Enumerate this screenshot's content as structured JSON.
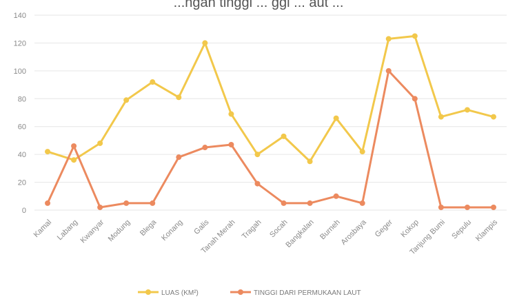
{
  "chart_data": {
    "type": "line",
    "title": "",
    "title_fragment": "...ngan tinggi ... ggi ... aut ...",
    "xlabel": "",
    "ylabel": "",
    "ylim": [
      0,
      140
    ],
    "yticks": [
      0,
      20,
      40,
      60,
      80,
      100,
      120,
      140
    ],
    "grid": true,
    "legend_position": "bottom",
    "categories": [
      "Kamal",
      "Labang",
      "Kwanyar",
      "Modung",
      "Blega",
      "Konang",
      "Galis",
      "Tanah Merah",
      "Tragah",
      "Socah",
      "Bangkalan",
      "Burneh",
      "Arosbaya",
      "Geger",
      "Kokop",
      "Tanjung Bumi",
      "Sepulu",
      "Klampis"
    ],
    "series": [
      {
        "name": "LUAS (KM²)",
        "color": "#f2c84b",
        "values": [
          42,
          36,
          48,
          79,
          92,
          81,
          120,
          69,
          40,
          53,
          35,
          66,
          42,
          123,
          125,
          67,
          72,
          67
        ]
      },
      {
        "name": "TINGGI DARI PERMUKAAN LAUT",
        "color": "#ec8a5f",
        "values": [
          5,
          46,
          2,
          5,
          5,
          38,
          45,
          47,
          19,
          5,
          5,
          10,
          5,
          100,
          80,
          2,
          2,
          2
        ]
      }
    ]
  }
}
